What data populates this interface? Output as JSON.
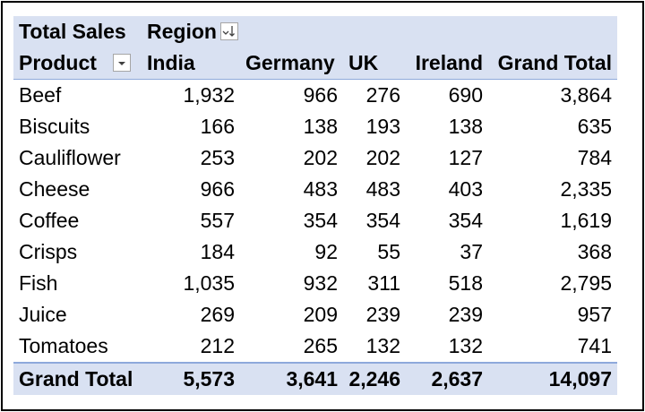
{
  "pivot": {
    "values_field": "Total Sales",
    "column_field": "Region",
    "row_field": "Product",
    "columns": [
      "India",
      "Germany",
      "UK",
      "Ireland",
      "Grand Total"
    ],
    "rows": [
      {
        "product": "Beef",
        "values": [
          "1,932",
          "966",
          "276",
          "690",
          "3,864"
        ]
      },
      {
        "product": "Biscuits",
        "values": [
          "166",
          "138",
          "193",
          "138",
          "635"
        ]
      },
      {
        "product": "Cauliflower",
        "values": [
          "253",
          "202",
          "202",
          "127",
          "784"
        ]
      },
      {
        "product": "Cheese",
        "values": [
          "966",
          "483",
          "483",
          "403",
          "2,335"
        ]
      },
      {
        "product": "Coffee",
        "values": [
          "557",
          "354",
          "354",
          "354",
          "1,619"
        ]
      },
      {
        "product": "Crisps",
        "values": [
          "184",
          "92",
          "55",
          "37",
          "368"
        ]
      },
      {
        "product": "Fish",
        "values": [
          "1,035",
          "932",
          "311",
          "518",
          "2,795"
        ]
      },
      {
        "product": "Juice",
        "values": [
          "269",
          "209",
          "239",
          "239",
          "957"
        ]
      },
      {
        "product": "Tomatoes",
        "values": [
          "212",
          "265",
          "132",
          "132",
          "741"
        ]
      }
    ],
    "grand_total": {
      "label": "Grand Total",
      "values": [
        "5,573",
        "3,641",
        "2,246",
        "2,637",
        "14,097"
      ]
    },
    "colors": {
      "header_fill": "#d9e1f2",
      "border": "#8ea9db"
    },
    "icons": {
      "region_filter": "sort-filter-icon",
      "product_filter": "dropdown-filter-icon"
    }
  }
}
